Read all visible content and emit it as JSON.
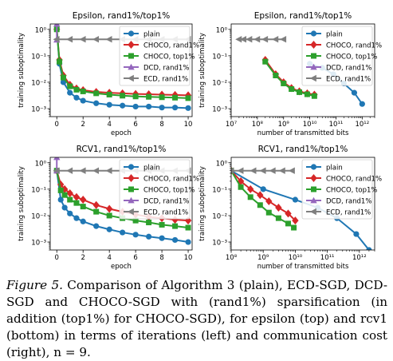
{
  "caption": {
    "label": "Figure 5.",
    "text": "Comparison of Algorithm 3 (plain), ECD-SGD, DCD-SGD and CHOCO-SGD with (rand1%) sparsification (in addition (top1%) for CHOCO-SGD), for epsilon (top) and rcv1 (bottom) in terms of iterations (left) and communication cost (right), n = 9."
  },
  "colors": {
    "plain": "#1f77b4",
    "choco_rand": "#d62728",
    "choco_top": "#2ca02c",
    "dcd": "#9467bd",
    "ecd": "#7f7f7f"
  },
  "chart_data": [
    {
      "type": "line",
      "title": "Epsilon, rand1%/top1%",
      "xlabel": "epoch",
      "ylabel": "training suboptimality",
      "xscale": "linear",
      "yscale": "log",
      "xlim": [
        -0.5,
        10.3
      ],
      "ylim": [
        0.0005,
        1.6
      ],
      "xticks": [
        0,
        2,
        4,
        6,
        8,
        10
      ],
      "xticklabels": [
        "0",
        "2",
        "4",
        "6",
        "8",
        "10"
      ],
      "yticks": [
        0.001,
        0.01,
        0.1,
        1
      ],
      "yticklabels": [
        "10⁻³",
        "10⁻²",
        "10⁻¹",
        "10⁰"
      ],
      "legend": {
        "position": "top-right",
        "entries": [
          "plain",
          "CHOCO, rand1%",
          "CHOCO, top1%",
          "DCD, rand1%",
          "ECD, rand1%"
        ]
      },
      "series": [
        {
          "name": "plain",
          "color": "#1f77b4",
          "marker": "circle",
          "x": [
            0,
            0.2,
            0.5,
            1,
            1.5,
            2,
            3,
            4,
            5,
            6,
            7,
            8,
            9,
            10
          ],
          "y": [
            1.0,
            0.05,
            0.01,
            0.004,
            0.0026,
            0.002,
            0.0016,
            0.0014,
            0.0013,
            0.0012,
            0.0012,
            0.0011,
            0.0011,
            0.00105
          ]
        },
        {
          "name": "CHOCO, rand1%",
          "color": "#d62728",
          "marker": "diamond",
          "x": [
            0,
            0.2,
            0.5,
            1,
            1.5,
            2,
            3,
            4,
            5,
            6,
            7,
            8,
            9,
            10
          ],
          "y": [
            1.0,
            0.07,
            0.018,
            0.008,
            0.0058,
            0.005,
            0.0043,
            0.004,
            0.0038,
            0.0036,
            0.0035,
            0.0034,
            0.0033,
            0.0032
          ]
        },
        {
          "name": "CHOCO, top1%",
          "color": "#2ca02c",
          "marker": "square",
          "x": [
            0,
            0.2,
            0.5,
            1,
            1.5,
            2,
            3,
            4,
            5,
            6,
            7,
            8,
            9,
            10
          ],
          "y": [
            1.0,
            0.06,
            0.015,
            0.007,
            0.0052,
            0.0045,
            0.0038,
            0.0034,
            0.0031,
            0.0029,
            0.0028,
            0.0027,
            0.0026,
            0.0025
          ]
        },
        {
          "name": "DCD, rand1%",
          "color": "#9467bd",
          "marker": "triangle-up",
          "x": [
            0,
            0
          ],
          "y": [
            1.6,
            0.4
          ]
        },
        {
          "name": "ECD, rand1%",
          "color": "#7f7f7f",
          "marker": "triangle-left",
          "x": [
            0,
            1,
            2,
            3,
            4,
            5,
            6,
            7,
            8,
            9,
            10
          ],
          "y": [
            0.42,
            0.42,
            0.42,
            0.42,
            0.42,
            0.42,
            0.42,
            0.42,
            0.42,
            0.42,
            0.42
          ]
        }
      ]
    },
    {
      "type": "line",
      "title": "Epsilon, rand1%/top1%",
      "xlabel": "number of transmitted bits",
      "ylabel": "training suboptimality",
      "xscale": "log",
      "yscale": "log",
      "xlim": [
        10000000,
        3000000000000
      ],
      "ylim": [
        0.0005,
        1.6
      ],
      "xticks": [
        10000000,
        100000000,
        1000000000,
        10000000000,
        100000000000,
        1000000000000
      ],
      "xticklabels": [
        "10⁷",
        "10⁸",
        "10⁹",
        "10¹⁰",
        "10¹¹",
        "10¹²"
      ],
      "yticks": [
        0.001,
        0.01,
        0.1,
        1
      ],
      "yticklabels": [
        "10⁻³",
        "10⁻²",
        "10⁻¹",
        "10⁰"
      ],
      "legend": {
        "position": "top-right",
        "entries": [
          "plain",
          "CHOCO, rand1%",
          "CHOCO, top1%",
          "DCD, rand1%",
          "ECD, rand1%"
        ]
      },
      "series": [
        {
          "name": "plain",
          "color": "#1f77b4",
          "marker": "circle",
          "x": [
            10000000000,
            30000000000,
            80000000000,
            200000000000,
            500000000000,
            1000000000000
          ],
          "y": [
            0.05,
            0.035,
            0.02,
            0.009,
            0.004,
            0.0015
          ]
        },
        {
          "name": "CHOCO, rand1%",
          "color": "#d62728",
          "marker": "diamond",
          "x": [
            200000000,
            500000000,
            1000000000,
            2000000000,
            4000000000,
            8000000000,
            15000000000
          ],
          "y": [
            0.07,
            0.02,
            0.01,
            0.006,
            0.0045,
            0.0038,
            0.0034
          ]
        },
        {
          "name": "CHOCO, top1%",
          "color": "#2ca02c",
          "marker": "square",
          "x": [
            200000000,
            500000000,
            1000000000,
            2000000000,
            4000000000,
            8000000000,
            15000000000
          ],
          "y": [
            0.06,
            0.018,
            0.009,
            0.0055,
            0.0042,
            0.0035,
            0.003
          ]
        },
        {
          "name": "DCD, rand1%",
          "color": "#9467bd",
          "marker": "triangle-up",
          "x": [],
          "y": []
        },
        {
          "name": "ECD, rand1%",
          "color": "#7f7f7f",
          "marker": "triangle-left",
          "x": [
            20000000,
            30000000,
            50000000,
            100000000,
            200000000,
            500000000,
            1000000000
          ],
          "y": [
            0.42,
            0.42,
            0.42,
            0.42,
            0.42,
            0.42,
            0.42
          ]
        }
      ]
    },
    {
      "type": "line",
      "title": "RCV1, rand1%/top1%",
      "xlabel": "epoch",
      "ylabel": "training suboptimality",
      "xscale": "linear",
      "yscale": "log",
      "xlim": [
        -0.5,
        10.3
      ],
      "ylim": [
        0.0005,
        1.6
      ],
      "xticks": [
        0,
        2,
        4,
        6,
        8,
        10
      ],
      "xticklabels": [
        "0",
        "2",
        "4",
        "6",
        "8",
        "10"
      ],
      "yticks": [
        0.001,
        0.01,
        0.1,
        1
      ],
      "yticklabels": [
        "10⁻³",
        "10⁻²",
        "10⁻¹",
        "10⁰"
      ],
      "legend": {
        "position": "top-right",
        "entries": [
          "plain",
          "CHOCO, rand1%",
          "CHOCO, top1%",
          "DCD, rand1%",
          "ECD, rand1%"
        ]
      },
      "series": [
        {
          "name": "plain",
          "color": "#1f77b4",
          "marker": "circle",
          "x": [
            0,
            0.3,
            0.6,
            1,
            1.5,
            2,
            3,
            4,
            5,
            6,
            7,
            8,
            9,
            10
          ],
          "y": [
            0.5,
            0.04,
            0.02,
            0.012,
            0.008,
            0.006,
            0.004,
            0.003,
            0.0023,
            0.0019,
            0.0016,
            0.0014,
            0.0012,
            0.001
          ]
        },
        {
          "name": "CHOCO, rand1%",
          "color": "#d62728",
          "marker": "diamond",
          "x": [
            0,
            0.3,
            0.6,
            1,
            1.5,
            2,
            3,
            4,
            5,
            6,
            7,
            8,
            9,
            10
          ],
          "y": [
            0.5,
            0.15,
            0.1,
            0.07,
            0.05,
            0.04,
            0.025,
            0.018,
            0.014,
            0.011,
            0.009,
            0.008,
            0.007,
            0.0065
          ]
        },
        {
          "name": "CHOCO, top1%",
          "color": "#2ca02c",
          "marker": "square",
          "x": [
            0,
            0.3,
            0.6,
            1,
            1.5,
            2,
            3,
            4,
            5,
            6,
            7,
            8,
            9,
            10
          ],
          "y": [
            0.5,
            0.09,
            0.06,
            0.04,
            0.03,
            0.022,
            0.014,
            0.01,
            0.008,
            0.0065,
            0.0055,
            0.0045,
            0.004,
            0.0035
          ]
        },
        {
          "name": "DCD, rand1%",
          "color": "#9467bd",
          "marker": "triangle-up",
          "x": [
            0,
            0
          ],
          "y": [
            1.6,
            0.5
          ]
        },
        {
          "name": "ECD, rand1%",
          "color": "#7f7f7f",
          "marker": "triangle-left",
          "x": [
            0,
            1,
            2,
            3,
            4,
            5,
            6,
            7,
            8,
            9,
            10
          ],
          "y": [
            0.5,
            0.5,
            0.5,
            0.5,
            0.5,
            0.5,
            0.5,
            0.5,
            0.5,
            0.5,
            0.5
          ]
        }
      ]
    },
    {
      "type": "line",
      "title": "RCV1, rand1%/top1%",
      "xlabel": "number of transmitted bits",
      "ylabel": "training suboptimality",
      "xscale": "log",
      "yscale": "log",
      "xlim": [
        100000000,
        3000000000000
      ],
      "ylim": [
        0.0005,
        1.6
      ],
      "xticks": [
        100000000,
        1000000000,
        10000000000,
        100000000000,
        1000000000000
      ],
      "xticklabels": [
        "10⁸",
        "10⁹",
        "10¹⁰",
        "10¹¹",
        "10¹²"
      ],
      "yticks": [
        0.001,
        0.01,
        0.1,
        1
      ],
      "yticklabels": [
        "10⁻³",
        "10⁻²",
        "10⁻¹",
        "10⁰"
      ],
      "legend": {
        "position": "top-right",
        "entries": [
          "plain",
          "CHOCO, rand1%",
          "CHOCO, top1%",
          "DCD, rand1%",
          "ECD, rand1%"
        ]
      },
      "series": [
        {
          "name": "plain",
          "color": "#1f77b4",
          "marker": "circle",
          "x": [
            100000000,
            1000000000,
            10000000000,
            50000000000,
            200000000000,
            800000000000,
            2000000000000
          ],
          "y": [
            0.5,
            0.1,
            0.04,
            0.02,
            0.008,
            0.002,
            0.0005
          ]
        },
        {
          "name": "CHOCO, rand1%",
          "color": "#d62728",
          "marker": "diamond",
          "x": [
            100000000,
            200000000,
            400000000,
            800000000,
            1500000000,
            3000000000,
            6000000000,
            10000000000
          ],
          "y": [
            0.5,
            0.2,
            0.1,
            0.06,
            0.035,
            0.02,
            0.012,
            0.0065
          ]
        },
        {
          "name": "CHOCO, top1%",
          "color": "#2ca02c",
          "marker": "square",
          "x": [
            100000000,
            200000000,
            400000000,
            800000000,
            1500000000,
            3000000000,
            6000000000,
            9000000000
          ],
          "y": [
            0.5,
            0.12,
            0.05,
            0.025,
            0.013,
            0.008,
            0.005,
            0.0035
          ]
        },
        {
          "name": "DCD, rand1%",
          "color": "#9467bd",
          "marker": "triangle-up",
          "x": [],
          "y": []
        },
        {
          "name": "ECD, rand1%",
          "color": "#7f7f7f",
          "marker": "triangle-left",
          "x": [
            100000000,
            200000000,
            500000000,
            1000000000,
            2000000000,
            4000000000,
            8000000000
          ],
          "y": [
            0.5,
            0.5,
            0.5,
            0.5,
            0.5,
            0.5,
            0.5
          ]
        }
      ]
    }
  ]
}
